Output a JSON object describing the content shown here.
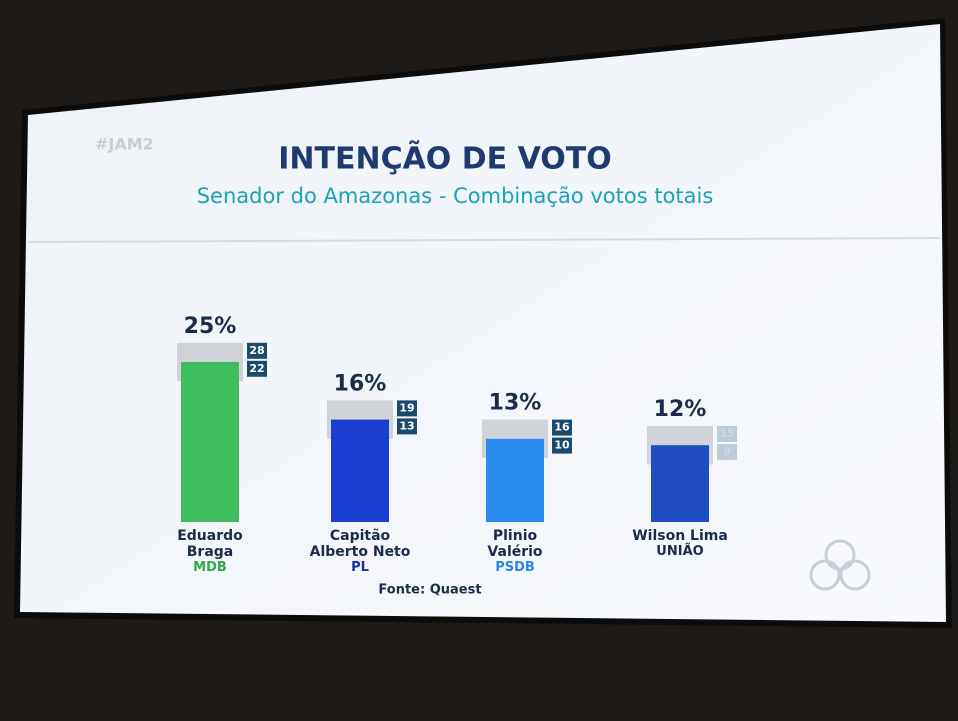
{
  "hashtag": "#JAM2",
  "chart_data": {
    "type": "bar",
    "title": "INTENÇÃO DE VOTO",
    "subtitle": "Senador do Amazonas - Combinação votos totais",
    "categories": [
      "Eduardo Braga",
      "Capitão Alberto Neto",
      "Plinio Valério",
      "Wilson Lima"
    ],
    "parties": [
      "MDB",
      "PL",
      "PSDB",
      "UNIÃO"
    ],
    "party_colors": [
      "#2eaa4a",
      "#1a2fa8",
      "#2b86e8",
      "#1c2b4a"
    ],
    "values": [
      25,
      16,
      13,
      12
    ],
    "value_labels": [
      "25%",
      "16%",
      "13%",
      "12%"
    ],
    "upper": [
      28,
      19,
      16,
      15
    ],
    "lower": [
      22,
      13,
      10,
      9
    ],
    "colors": [
      "#3dbd5c",
      "#1b3fd0",
      "#2b8cf0",
      "#1f4ec2"
    ],
    "source": "Fonte: Quaest"
  }
}
